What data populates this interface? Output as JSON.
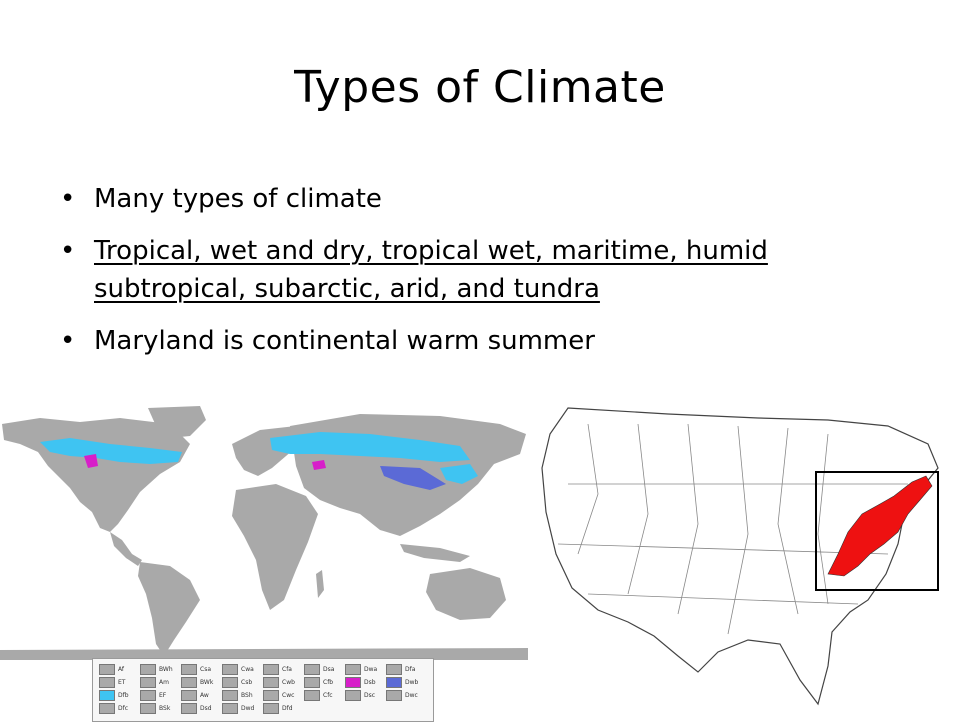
{
  "slide": {
    "title": "Types of Climate",
    "bullets": [
      {
        "text": "Many types of climate",
        "underline": false
      },
      {
        "text": "Tropical, wet and dry, tropical wet, maritime, humid subtropical, subarctic, arid, and tundra",
        "underline": true
      },
      {
        "text": "Maryland is continental warm summer",
        "underline": false
      }
    ]
  },
  "legend": {
    "items": [
      {
        "code": "Af",
        "color": "#a9a9a9"
      },
      {
        "code": "BWh",
        "color": "#a9a9a9"
      },
      {
        "code": "Csa",
        "color": "#a9a9a9"
      },
      {
        "code": "Cwa",
        "color": "#a9a9a9"
      },
      {
        "code": "Cfa",
        "color": "#a9a9a9"
      },
      {
        "code": "Dsa",
        "color": "#a9a9a9"
      },
      {
        "code": "Dwa",
        "color": "#a9a9a9"
      },
      {
        "code": "Dfa",
        "color": "#a9a9a9"
      },
      {
        "code": "ET",
        "color": "#a9a9a9"
      },
      {
        "code": "Am",
        "color": "#a9a9a9"
      },
      {
        "code": "BWk",
        "color": "#a9a9a9"
      },
      {
        "code": "Csb",
        "color": "#a9a9a9"
      },
      {
        "code": "Cwb",
        "color": "#a9a9a9"
      },
      {
        "code": "Cfb",
        "color": "#a9a9a9"
      },
      {
        "code": "Dsb",
        "color": "#d71fc9"
      },
      {
        "code": "Dwb",
        "color": "#5b6ad6"
      },
      {
        "code": "Dfb",
        "color": "#3fc4f2"
      },
      {
        "code": "EF",
        "color": "#a9a9a9"
      },
      {
        "code": "Aw",
        "color": "#a9a9a9"
      },
      {
        "code": "BSh",
        "color": "#a9a9a9"
      },
      {
        "code": "Cwc",
        "color": "#a9a9a9"
      },
      {
        "code": "Cfc",
        "color": "#a9a9a9"
      },
      {
        "code": "Dsc",
        "color": "#a9a9a9"
      },
      {
        "code": "Dwc",
        "color": "#a9a9a9"
      },
      {
        "code": "Dfc",
        "color": "#a9a9a9"
      },
      {
        "code": "BSk",
        "color": "#a9a9a9"
      },
      {
        "code": "Dsd",
        "color": "#a9a9a9"
      },
      {
        "code": "Dwd",
        "color": "#a9a9a9"
      },
      {
        "code": "Dfd",
        "color": "#a9a9a9"
      }
    ]
  },
  "colors": {
    "land": "#a9a9a9",
    "dfb": "#3fc4f2",
    "dwb": "#5b6ad6",
    "dsb": "#d71fc9",
    "highlight_region": "#ee1111"
  }
}
